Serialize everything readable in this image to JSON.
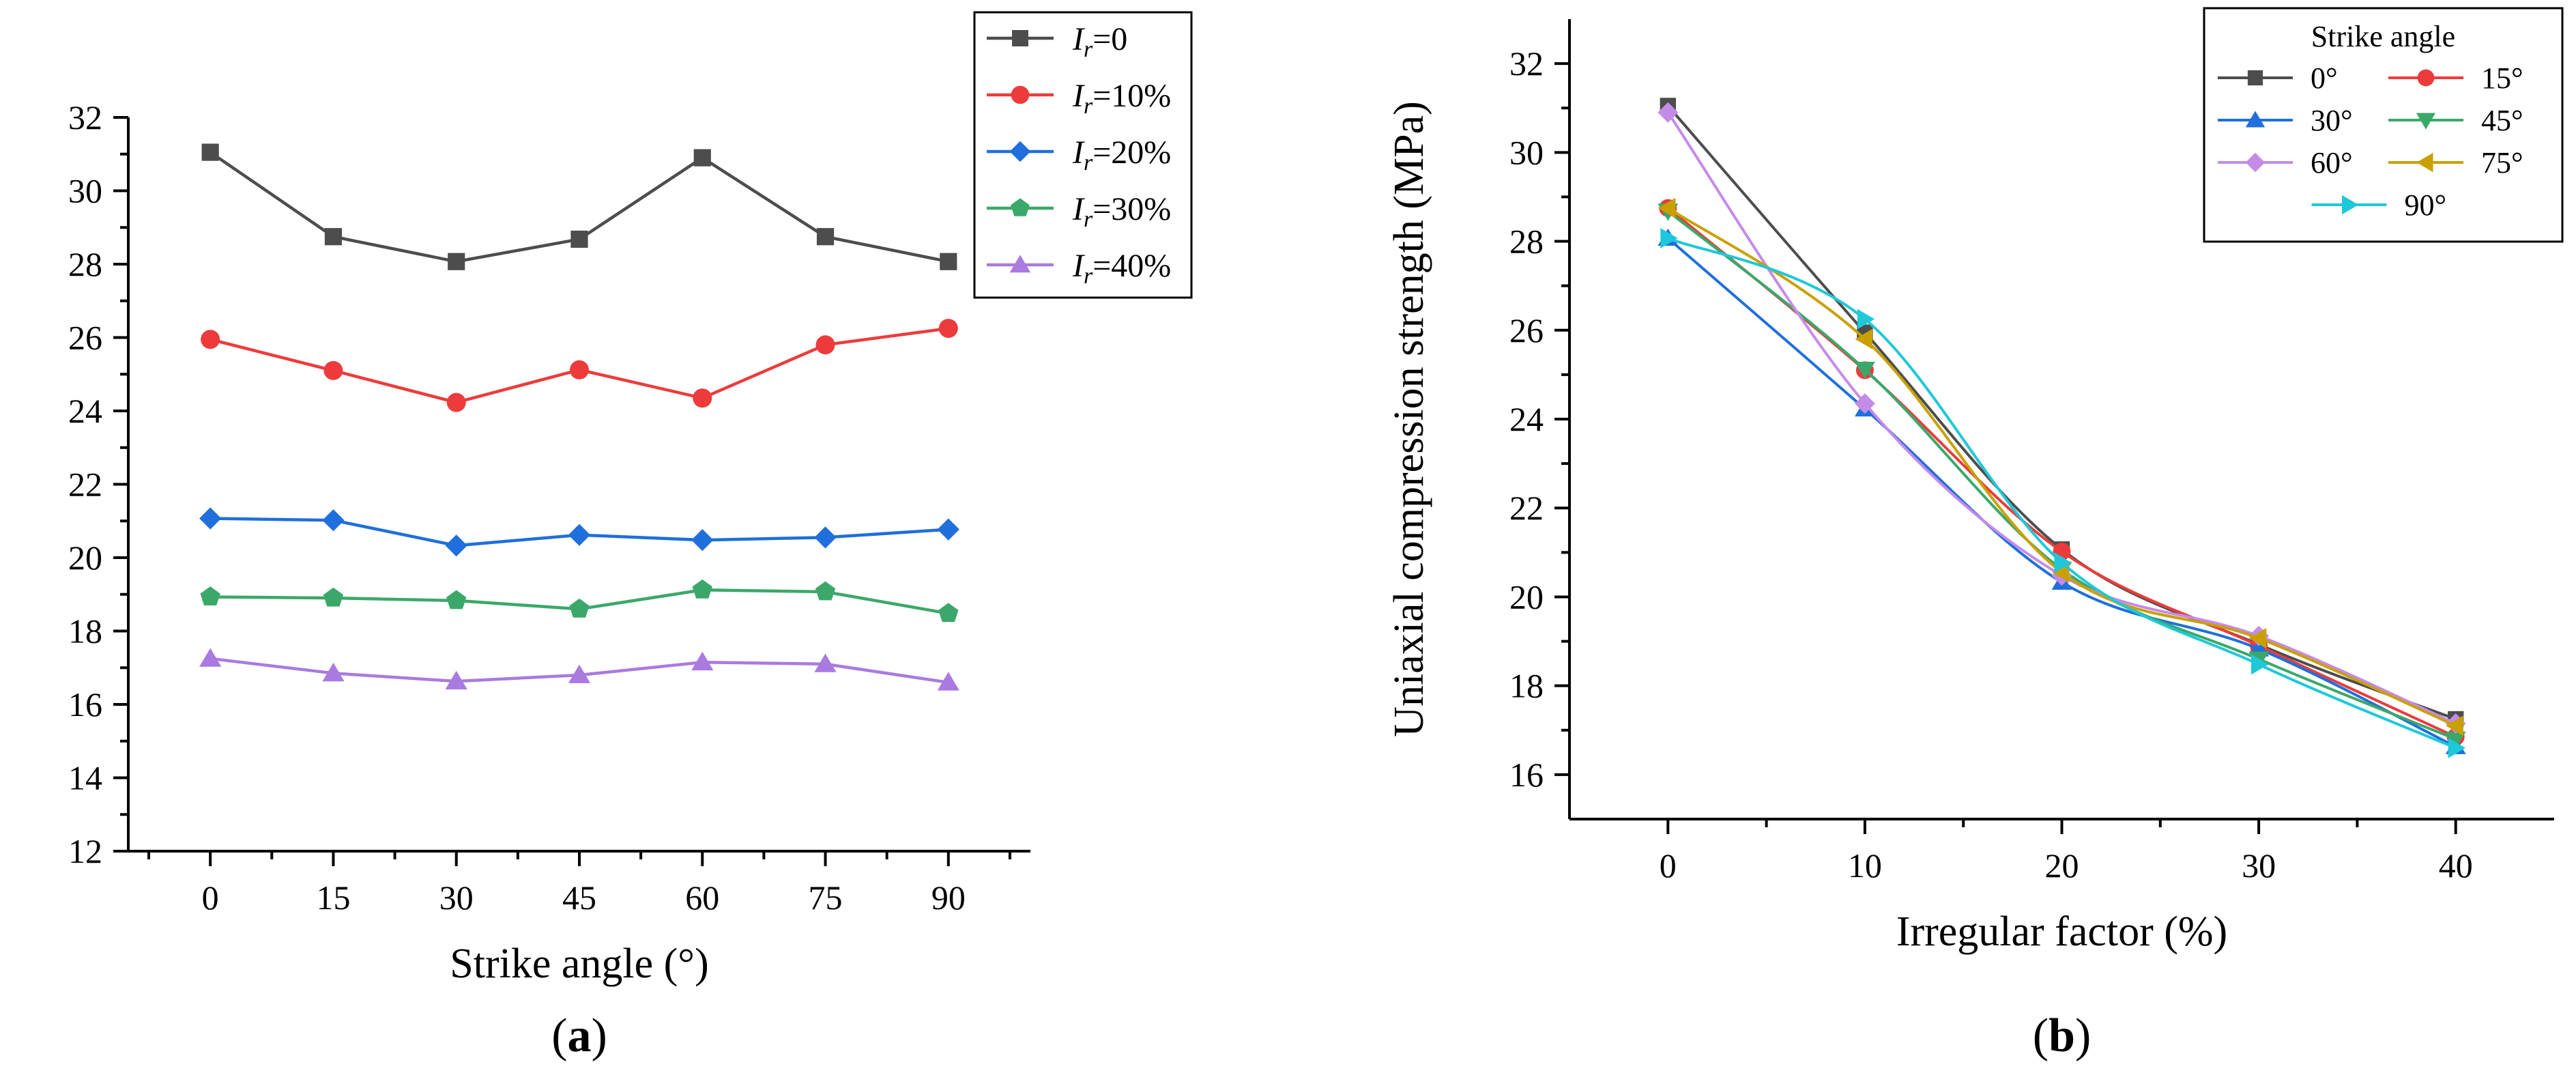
{
  "chart_data": [
    {
      "type": "line",
      "panel_label": "(a)",
      "xlabel": "Strike angle (°)",
      "ylabel": "Uniaxial compression strength (MPa)",
      "xlim": [
        -10,
        100
      ],
      "ylim": [
        12,
        32
      ],
      "xticks": [
        0,
        15,
        30,
        45,
        60,
        75,
        90
      ],
      "yticks": [
        12,
        14,
        16,
        18,
        20,
        22,
        24,
        26,
        28,
        30,
        32
      ],
      "legend_position": "top-right",
      "x": [
        0,
        15,
        30,
        45,
        60,
        75,
        90
      ],
      "series": [
        {
          "name_italic": "I",
          "name_sub": "r",
          "name_rest": "=0",
          "color": "#4d4d4d",
          "marker": "square",
          "values": [
            31.05,
            28.75,
            28.07,
            28.68,
            30.9,
            28.75,
            28.07
          ]
        },
        {
          "name_italic": "I",
          "name_sub": "r",
          "name_rest": "=10%",
          "color": "#ed3b3b",
          "marker": "circle",
          "values": [
            25.95,
            25.1,
            24.23,
            25.12,
            24.35,
            25.8,
            26.25
          ]
        },
        {
          "name_italic": "I",
          "name_sub": "r",
          "name_rest": "=20%",
          "color": "#1f6fdc",
          "marker": "diamond",
          "values": [
            21.07,
            21.02,
            20.33,
            20.62,
            20.48,
            20.55,
            20.77
          ]
        },
        {
          "name_italic": "I",
          "name_sub": "r",
          "name_rest": "=30%",
          "color": "#3ba86a",
          "marker": "pentagon",
          "values": [
            18.93,
            18.9,
            18.83,
            18.6,
            19.12,
            19.07,
            18.48
          ]
        },
        {
          "name_italic": "I",
          "name_sub": "r",
          "name_rest": "=40%",
          "color": "#a97ae0",
          "marker": "triangle",
          "values": [
            17.25,
            16.85,
            16.63,
            16.8,
            17.15,
            17.1,
            16.6
          ]
        }
      ]
    },
    {
      "type": "line",
      "panel_label": "(b)",
      "xlabel": "Irregular factor (%)",
      "ylabel": "Uniaxial compression strength (MPa)",
      "xlim": [
        -5,
        45
      ],
      "ylim": [
        15,
        33
      ],
      "xticks": [
        0,
        10,
        20,
        30,
        40
      ],
      "yticks": [
        16,
        18,
        20,
        22,
        24,
        26,
        28,
        30,
        32
      ],
      "legend_title": "Strike angle",
      "legend_position": "top-right",
      "x": [
        0,
        10,
        20,
        30,
        40
      ],
      "series": [
        {
          "name": "0°",
          "color": "#4d4d4d",
          "marker": "square",
          "values": [
            31.05,
            25.95,
            21.07,
            18.93,
            17.25
          ]
        },
        {
          "name": "15°",
          "color": "#ed3b3b",
          "marker": "circle",
          "values": [
            28.75,
            25.1,
            21.02,
            18.9,
            16.85
          ]
        },
        {
          "name": "30°",
          "color": "#1f6fdc",
          "marker": "triangle",
          "values": [
            28.07,
            24.23,
            20.33,
            18.83,
            16.63
          ]
        },
        {
          "name": "45°",
          "color": "#3ba86a",
          "marker": "triangle-down",
          "values": [
            28.68,
            25.12,
            20.62,
            18.6,
            16.8
          ]
        },
        {
          "name": "60°",
          "color": "#c58be8",
          "marker": "diamond",
          "values": [
            30.9,
            24.35,
            20.48,
            19.12,
            17.15
          ]
        },
        {
          "name": "75°",
          "color": "#c9a000",
          "marker": "triangle-left",
          "values": [
            28.75,
            25.8,
            20.55,
            19.07,
            17.1
          ]
        },
        {
          "name": "90°",
          "color": "#1ec8d8",
          "marker": "triangle-right",
          "values": [
            28.07,
            26.25,
            20.77,
            18.48,
            16.6
          ]
        }
      ]
    }
  ]
}
